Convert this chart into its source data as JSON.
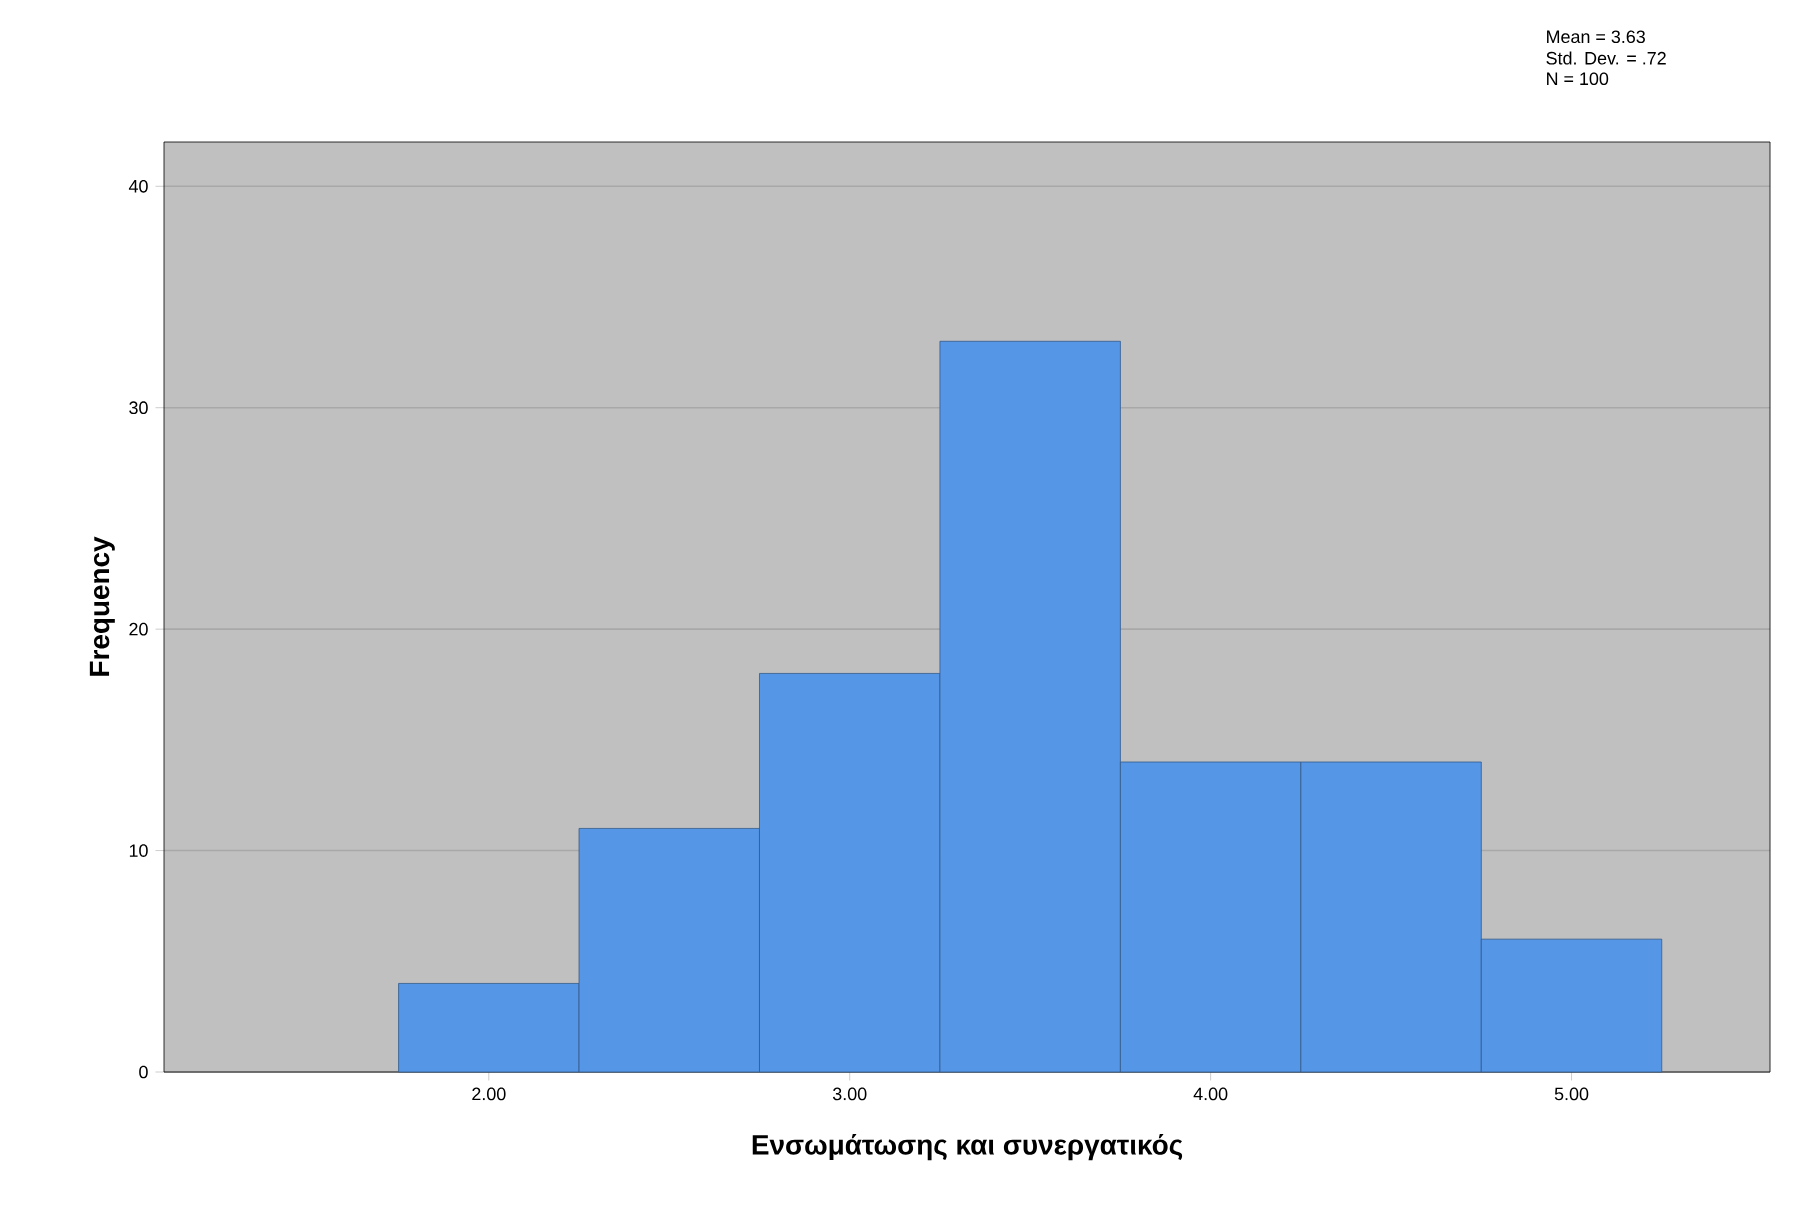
{
  "chart_data": {
    "type": "histogram",
    "xlabel": "Ενσωμάτωσης και συνεργατικός",
    "ylabel": "Frequency",
    "bins": [
      1.75,
      2.25,
      2.75,
      3.25,
      3.75,
      4.25,
      4.75,
      5.25
    ],
    "values": [
      4,
      11,
      18,
      33,
      14,
      14,
      6
    ],
    "color": "#5596e6",
    "xlim": [
      1.1,
      5.55
    ],
    "ylim": [
      0,
      42
    ],
    "xticks": [
      {
        "value": 2,
        "label": "2.00"
      },
      {
        "value": 3,
        "label": "3.00"
      },
      {
        "value": 4,
        "label": "4.00"
      },
      {
        "value": 5,
        "label": "5.00"
      }
    ],
    "yticks": [
      0,
      10,
      20,
      30,
      40
    ],
    "grid": "y",
    "annotations": [
      "Mean = 3.63",
      "Std. Dev. = .72",
      "N = 100"
    ]
  }
}
